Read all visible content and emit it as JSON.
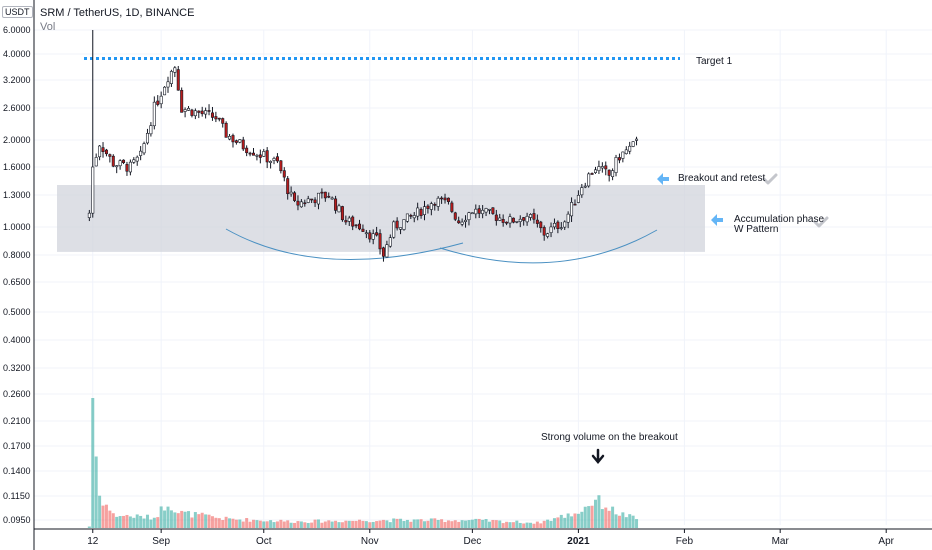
{
  "header": {
    "title": "SRM / TetherUS, 1D, BINANCE",
    "volume_label": "Vol",
    "currency_badge": "USDT"
  },
  "annotations": {
    "target": "Target 1",
    "breakout": "Breakout and retest",
    "accumulation_line1": "Accumulation phase",
    "accumulation_line2": "W Pattern",
    "volume_note": "Strong volume on the breakout"
  },
  "colors": {
    "up": "#26a69a",
    "down": "#ef5350",
    "candle_up_fill": "#ffffff",
    "candle_down_fill": "#b71c1c",
    "target_line": "#2196f3",
    "zone": "#d1d4dc",
    "curve": "#4a90c2",
    "arrow": "#64b5f6"
  },
  "chart_data": {
    "type": "candlestick",
    "symbol": "SRM / TetherUS",
    "interval": "1D",
    "exchange": "BINANCE",
    "y_scale": "log",
    "y_ticks": [
      "6.0000",
      "4.0000",
      "3.2000",
      "2.6000",
      "2.0000",
      "1.6000",
      "1.3000",
      "1.0000",
      "0.8000",
      "0.6500",
      "0.5000",
      "0.4000",
      "0.3200",
      "0.2600",
      "0.2100",
      "0.1700",
      "0.1400",
      "0.1150",
      "0.0950"
    ],
    "x_ticks": [
      "12",
      "Sep",
      "Oct",
      "Nov",
      "Dec",
      "2021",
      "Feb",
      "Mar",
      "Apr"
    ],
    "target_price": 3.85,
    "zone": {
      "low": 0.82,
      "high": 1.4
    },
    "price_waypoints": [
      {
        "date": "2020-08-11",
        "close": 1.1
      },
      {
        "date": "2020-08-12",
        "close": 1.6
      },
      {
        "date": "2020-08-14",
        "close": 1.95
      },
      {
        "date": "2020-08-18",
        "close": 1.65
      },
      {
        "date": "2020-08-23",
        "close": 1.6
      },
      {
        "date": "2020-08-26",
        "close": 1.75
      },
      {
        "date": "2020-08-30",
        "close": 2.6
      },
      {
        "date": "2020-09-03",
        "close": 3.3
      },
      {
        "date": "2020-09-05",
        "close": 3.6
      },
      {
        "date": "2020-09-07",
        "close": 2.6
      },
      {
        "date": "2020-09-12",
        "close": 2.5
      },
      {
        "date": "2020-09-17",
        "close": 2.4
      },
      {
        "date": "2020-09-20",
        "close": 2.1
      },
      {
        "date": "2020-09-25",
        "close": 1.9
      },
      {
        "date": "2020-10-01",
        "close": 1.75
      },
      {
        "date": "2020-10-05",
        "close": 1.65
      },
      {
        "date": "2020-10-10",
        "close": 1.2
      },
      {
        "date": "2020-10-14",
        "close": 1.25
      },
      {
        "date": "2020-10-20",
        "close": 1.3
      },
      {
        "date": "2020-10-25",
        "close": 1.05
      },
      {
        "date": "2020-10-30",
        "close": 1.0
      },
      {
        "date": "2020-11-03",
        "close": 0.9
      },
      {
        "date": "2020-11-05",
        "close": 0.8
      },
      {
        "date": "2020-11-08",
        "close": 1.0
      },
      {
        "date": "2020-11-14",
        "close": 1.1
      },
      {
        "date": "2020-11-20",
        "close": 1.25
      },
      {
        "date": "2020-11-24",
        "close": 1.2
      },
      {
        "date": "2020-11-27",
        "close": 1.05
      },
      {
        "date": "2020-12-01",
        "close": 1.15
      },
      {
        "date": "2020-12-07",
        "close": 1.1
      },
      {
        "date": "2020-12-12",
        "close": 1.05
      },
      {
        "date": "2020-12-17",
        "close": 1.1
      },
      {
        "date": "2020-12-22",
        "close": 0.95
      },
      {
        "date": "2020-12-28",
        "close": 1.05
      },
      {
        "date": "2021-01-02",
        "close": 1.4
      },
      {
        "date": "2021-01-06",
        "close": 1.6
      },
      {
        "date": "2021-01-10",
        "close": 1.5
      },
      {
        "date": "2021-01-13",
        "close": 1.75
      },
      {
        "date": "2021-01-18",
        "close": 1.95
      }
    ],
    "volume_profile": [
      {
        "date": "2020-08-11",
        "value": 0.0
      },
      {
        "date": "2020-08-12",
        "value": 1.0
      },
      {
        "date": "2020-08-13",
        "value": 0.55
      },
      {
        "date": "2020-08-14",
        "value": 0.25
      },
      {
        "date": "2020-08-18",
        "value": 0.1
      },
      {
        "date": "2020-08-30",
        "value": 0.08
      },
      {
        "date": "2020-09-03",
        "value": 0.2
      },
      {
        "date": "2020-09-06",
        "value": 0.12
      },
      {
        "date": "2020-09-20",
        "value": 0.07
      },
      {
        "date": "2020-10-10",
        "value": 0.05
      },
      {
        "date": "2020-11-05",
        "value": 0.06
      },
      {
        "date": "2020-12-01",
        "value": 0.06
      },
      {
        "date": "2020-12-20",
        "value": 0.04
      },
      {
        "date": "2021-01-01",
        "value": 0.12
      },
      {
        "date": "2021-01-06",
        "value": 0.22
      },
      {
        "date": "2021-01-12",
        "value": 0.12
      },
      {
        "date": "2021-01-18",
        "value": 0.07
      }
    ]
  }
}
